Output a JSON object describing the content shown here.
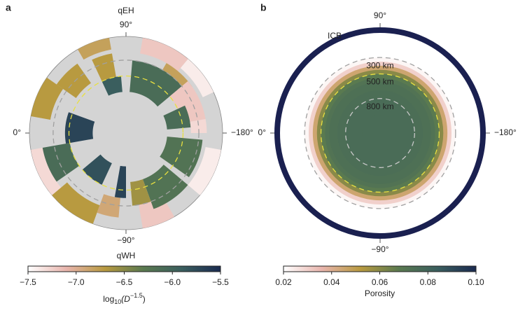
{
  "chart_data": [
    {
      "type": "polar_heatmap",
      "panel_label": "a",
      "top_label": "qEH",
      "bottom_label": "qWH",
      "angle_ticks": [
        {
          "value": 90,
          "label": "90°"
        },
        {
          "value": 0,
          "label": "0°"
        },
        {
          "value": -180,
          "label": "−180°"
        },
        {
          "value": -90,
          "label": "−90°"
        }
      ],
      "inner_core_radius_km": 1221,
      "depth_contours": [
        {
          "depth": 300,
          "color": "#a0a0a0"
        },
        {
          "depth": 500,
          "color": "#e8e040"
        }
      ],
      "sectors": {
        "theta0": [
          60,
          10,
          35,
          65,
          65,
          -10,
          -40,
          -35,
          -70,
          -65,
          -85,
          -90,
          -120,
          -140,
          -170,
          -175,
          -110,
          100,
          130,
          120,
          95,
          140,
          155,
          170
        ],
        "theta1": [
          80,
          35,
          55,
          80,
          85,
          20,
          -10,
          -10,
          -40,
          -40,
          -70,
          -80,
          -100,
          -110,
          -140,
          -145,
          -95,
          130,
          155,
          145,
          140,
          170,
          175,
          180
        ],
        "depth0": [
          0,
          0,
          150,
          200,
          500,
          450,
          0,
          150,
          0,
          500,
          150,
          400,
          0,
          200,
          0,
          250,
          300,
          0,
          0,
          200,
          300,
          200,
          400,
          200
        ],
        "depth1": [
          150,
          250,
          450,
          500,
          700,
          800,
          150,
          500,
          250,
          800,
          400,
          800,
          300,
          600,
          200,
          700,
          600,
          200,
          150,
          300,
          700,
          500,
          700,
          400
        ],
        "values": [
          -6.8,
          -6.7,
          -6.7,
          -6.7,
          -5.9,
          -5.7,
          -7.3,
          -6.1,
          -6.7,
          -5.8,
          -6.9,
          -5.7,
          -7.2,
          -6.2,
          -7.4,
          -6.2,
          -6.6,
          -7.2,
          -7.4,
          -6.8,
          -6.1,
          -7.2,
          -6.1,
          -7.3
        ]
      },
      "colormap": [
        "#ffffff",
        "#e8b4ac",
        "#b89a40",
        "#5a7a50",
        "#3a5e5e",
        "#1a2a50"
      ],
      "clim": [
        -7.5,
        -5.5
      ],
      "cticks": [
        {
          "value": -7.5,
          "label": "−7.5"
        },
        {
          "value": -7.0,
          "label": "−7.0"
        },
        {
          "value": -6.5,
          "label": "−6.5"
        },
        {
          "value": -6.0,
          "label": "−6.0"
        },
        {
          "value": -5.5,
          "label": "−5.5"
        }
      ],
      "colorbar_label": {
        "base": "log",
        "sub": "10",
        "mid": "(D",
        "sup": "−1.5",
        "end": ")"
      }
    },
    {
      "type": "polar_profile",
      "panel_label": "b",
      "boundary_label": "ICB",
      "angle_ticks": [
        {
          "value": 90,
          "label": "90°"
        },
        {
          "value": 0,
          "label": "0°"
        },
        {
          "value": -180,
          "label": "−180°"
        },
        {
          "value": -90,
          "label": "−90°"
        }
      ],
      "inner_core_radius_km": 1221,
      "depth_contours": [
        {
          "depth": 300,
          "label": "300 km",
          "color": "#a0a0a0"
        },
        {
          "depth": 500,
          "label": "500 km",
          "color": "#e8e040"
        },
        {
          "depth": 800,
          "label": "800 km",
          "color": "#c8c8c8"
        }
      ],
      "profile": {
        "depth": [
          0,
          100,
          200,
          300,
          350,
          400,
          450,
          500,
          550,
          600,
          700,
          800,
          1000,
          1221
        ],
        "porosity": [
          0.02,
          0.02,
          0.02,
          0.022,
          0.03,
          0.045,
          0.06,
          0.068,
          0.072,
          0.074,
          0.075,
          0.076,
          0.076,
          0.075
        ]
      },
      "colormap": [
        "#ffffff",
        "#e8b4ac",
        "#b89a40",
        "#5a7a50",
        "#3a5e5e",
        "#1a2a50"
      ],
      "clim": [
        0.02,
        0.1
      ],
      "cticks": [
        0.02,
        0.04,
        0.06,
        0.08,
        {
          "value": 0.1,
          "label": "0.10"
        }
      ],
      "colorbar_label": "Porosity"
    }
  ]
}
